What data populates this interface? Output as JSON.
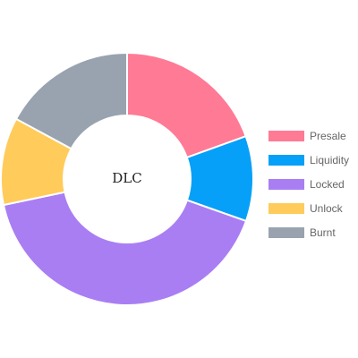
{
  "chart_data": {
    "type": "pie",
    "variant": "doughnut",
    "center_label": "DLC",
    "categories": [
      "Presale",
      "Liquidity",
      "Locked",
      "Unlock",
      "Burnt"
    ],
    "values": [
      19.5,
      10.9,
      41.3,
      11.2,
      17.1
    ],
    "colors": [
      "#ff7a95",
      "#06a0f8",
      "#a97ef3",
      "#ffcb5a",
      "#98a3af"
    ],
    "legend_position": "right"
  }
}
